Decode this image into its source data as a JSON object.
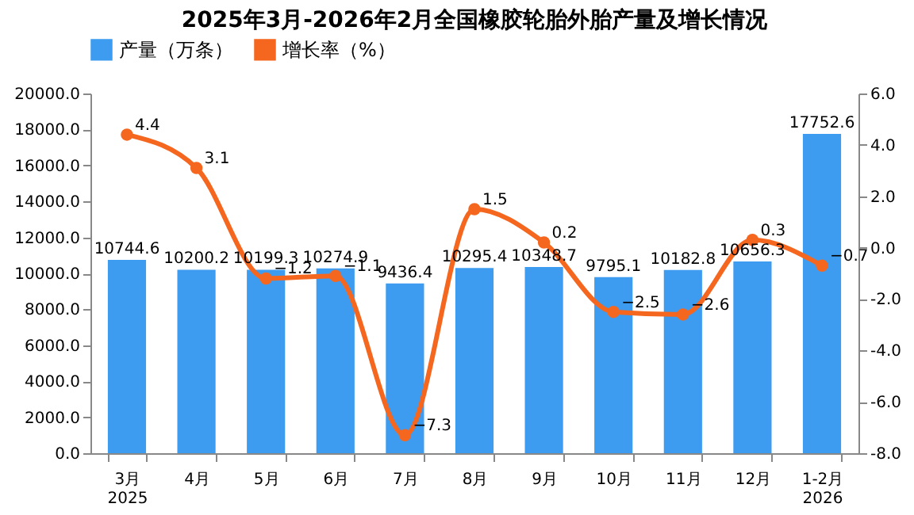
{
  "chart_data": {
    "type": "bar",
    "title": "2025年3月-2026年2月全国橡胶轮胎外胎产量及增长情况",
    "categories": [
      "3月\n2025",
      "4月",
      "5月",
      "6月",
      "7月",
      "8月",
      "9月",
      "10月",
      "11月",
      "12月",
      "1-2月\n2026"
    ],
    "series": [
      {
        "name": "产量（万条）",
        "type": "bar",
        "color": "#3d9cf0",
        "values": [
          10744.6,
          10200.2,
          10199.3,
          10274.9,
          9436.4,
          10295.4,
          10348.7,
          9795.1,
          10182.8,
          10656.3,
          17752.6
        ]
      },
      {
        "name": "增长率（%）",
        "type": "line",
        "axis": "y2",
        "color": "#f5661e",
        "values": [
          4.4,
          3.1,
          -1.2,
          -1.1,
          -7.3,
          1.5,
          0.2,
          -2.5,
          -2.6,
          0.3,
          -0.7
        ]
      }
    ],
    "ylim": [
      0,
      20000
    ],
    "yticks": [
      {
        "value": 0,
        "label": "0.0"
      },
      {
        "value": 2000,
        "label": "2000.0"
      },
      {
        "value": 4000,
        "label": "4000.0"
      },
      {
        "value": 6000,
        "label": "6000.0"
      },
      {
        "value": 8000,
        "label": "8000.0"
      },
      {
        "value": 10000,
        "label": "10000.0"
      },
      {
        "value": 12000,
        "label": "12000.0"
      },
      {
        "value": 14000,
        "label": "14000.0"
      },
      {
        "value": 16000,
        "label": "16000.0"
      },
      {
        "value": 18000,
        "label": "18000.0"
      },
      {
        "value": 20000,
        "label": "20000.0"
      }
    ],
    "y2lim": [
      -8,
      6
    ],
    "y2ticks": [
      {
        "value": -8,
        "label": "-8.0"
      },
      {
        "value": -6,
        "label": "-6.0"
      },
      {
        "value": -4,
        "label": "-4.0"
      },
      {
        "value": -2,
        "label": "-2.0"
      },
      {
        "value": 0,
        "label": "0.0"
      },
      {
        "value": 2,
        "label": "2.0"
      },
      {
        "value": 4,
        "label": "4.0"
      },
      {
        "value": 6,
        "label": "6.0"
      }
    ],
    "data_labels": true,
    "legend": "top",
    "grid": false,
    "marker": "circle"
  }
}
